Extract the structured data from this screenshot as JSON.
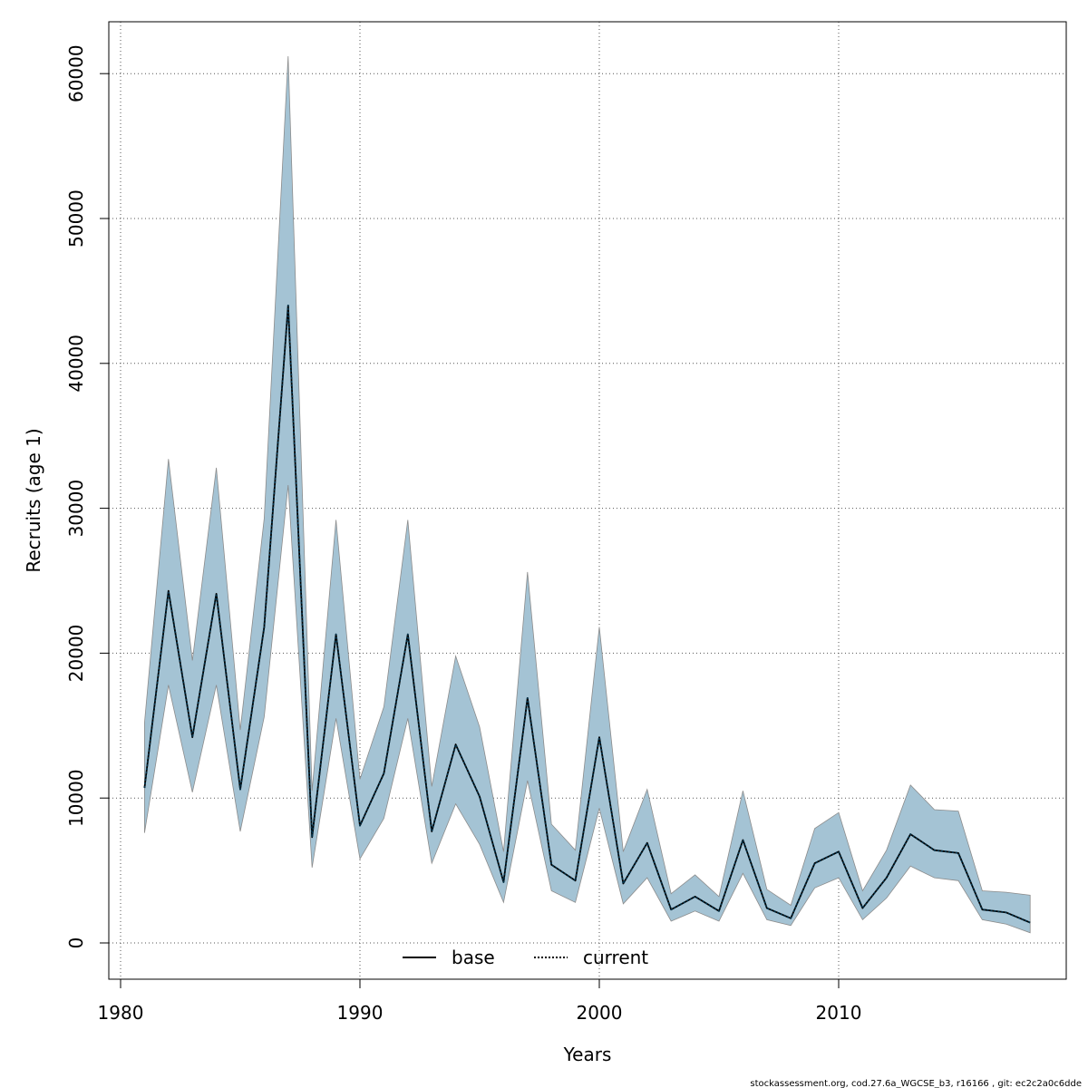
{
  "chart_data": {
    "type": "line",
    "title": "",
    "xlabel": "Years",
    "ylabel": "Recruits (age 1)",
    "xlim": [
      1980,
      2020
    ],
    "ylim": [
      0,
      61000
    ],
    "x_ticks": [
      1980,
      1990,
      2000,
      2010
    ],
    "x_tick_labels": [
      "1980",
      "1990",
      "2000",
      "2010"
    ],
    "y_ticks": [
      0,
      10000,
      20000,
      30000,
      40000,
      50000,
      60000
    ],
    "y_tick_labels": [
      "0",
      "10000",
      "20000",
      "30000",
      "40000",
      "50000",
      "60000"
    ],
    "grid": true,
    "legend": {
      "position": "bottom-center",
      "entries": [
        {
          "label": "base",
          "style": "solid",
          "color": "#000000"
        },
        {
          "label": "current",
          "style": "dotted",
          "color": "#000000"
        }
      ]
    },
    "band_color": "#a4c3d4",
    "band_edge_color": "#8c8c8c",
    "x": [
      1981,
      1982,
      1983,
      1984,
      1985,
      1986,
      1987,
      1988,
      1989,
      1990,
      1991,
      1992,
      1993,
      1994,
      1995,
      1996,
      1997,
      1998,
      1999,
      2000,
      2001,
      2002,
      2003,
      2004,
      2005,
      2006,
      2007,
      2008,
      2009,
      2010,
      2011,
      2012,
      2013,
      2014,
      2015,
      2016,
      2017,
      2018
    ],
    "series": [
      {
        "name": "base",
        "style": "solid",
        "values": [
          10700,
          24300,
          14200,
          24100,
          10600,
          21800,
          44000,
          7300,
          21300,
          8100,
          11700,
          21300,
          7700,
          13700,
          10100,
          4200,
          16900,
          5400,
          4300,
          14200,
          4100,
          6900,
          2300,
          3200,
          2200,
          7100,
          2400,
          1700,
          5500,
          6300,
          2400,
          4500,
          7500,
          6400,
          6200,
          2300,
          2100,
          1400
        ]
      },
      {
        "name": "current",
        "style": "dotted",
        "values": [
          10700,
          24300,
          14200,
          24100,
          10600,
          21800,
          44000,
          7300,
          21300,
          8100,
          11700,
          21300,
          7700,
          13700,
          10100,
          4200,
          16900,
          5400,
          4300,
          14200,
          4100,
          6900,
          2300,
          3200,
          2200,
          7100,
          2400,
          1700,
          5500,
          6300,
          2400,
          4500,
          7500,
          6400,
          6200,
          2300,
          2100,
          1400
        ]
      }
    ],
    "band": {
      "name": "confidence interval",
      "upper": [
        15200,
        33400,
        19500,
        32800,
        14700,
        29300,
        61200,
        10500,
        29200,
        11300,
        16300,
        29200,
        10800,
        19800,
        14900,
        6300,
        25600,
        8200,
        6400,
        21800,
        6300,
        10600,
        3400,
        4700,
        3200,
        10500,
        3700,
        2600,
        7900,
        9000,
        3600,
        6400,
        10900,
        9200,
        9100,
        3600,
        3500,
        3300
      ],
      "lower": [
        7600,
        17800,
        10400,
        17800,
        7700,
        15600,
        31600,
        5200,
        15500,
        5800,
        8600,
        15500,
        5500,
        9600,
        6800,
        2800,
        11200,
        3600,
        2800,
        9300,
        2700,
        4500,
        1500,
        2200,
        1500,
        4800,
        1600,
        1200,
        3800,
        4500,
        1600,
        3100,
        5300,
        4500,
        4300,
        1600,
        1300,
        700
      ]
    },
    "footnote": "stockassessment.org, cod.27.6a_WGCSE_b3, r16166 , git: ec2c2a0c6dde"
  }
}
